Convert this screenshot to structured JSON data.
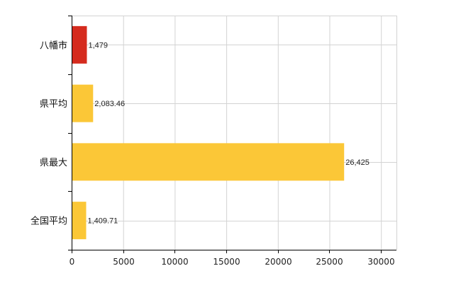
{
  "chart_data": {
    "type": "bar",
    "orientation": "horizontal",
    "categories": [
      "八幡市",
      "県平均",
      "県最大",
      "全国平均"
    ],
    "values": [
      1479,
      2083.46,
      26425,
      1409.71
    ],
    "value_labels": [
      "1,479",
      "2,083.46",
      "26,425",
      "1,409.71"
    ],
    "bar_colors": [
      "#d52b1e",
      "#fbc737",
      "#fbc737",
      "#fbc737"
    ],
    "xlim": [
      0,
      31500
    ],
    "xticks": [
      0,
      5000,
      10000,
      15000,
      20000,
      25000,
      30000
    ],
    "xtick_labels": [
      "0",
      "5000",
      "10000",
      "15000",
      "20000",
      "25000",
      "30000"
    ],
    "grid": true,
    "legend": "none"
  }
}
